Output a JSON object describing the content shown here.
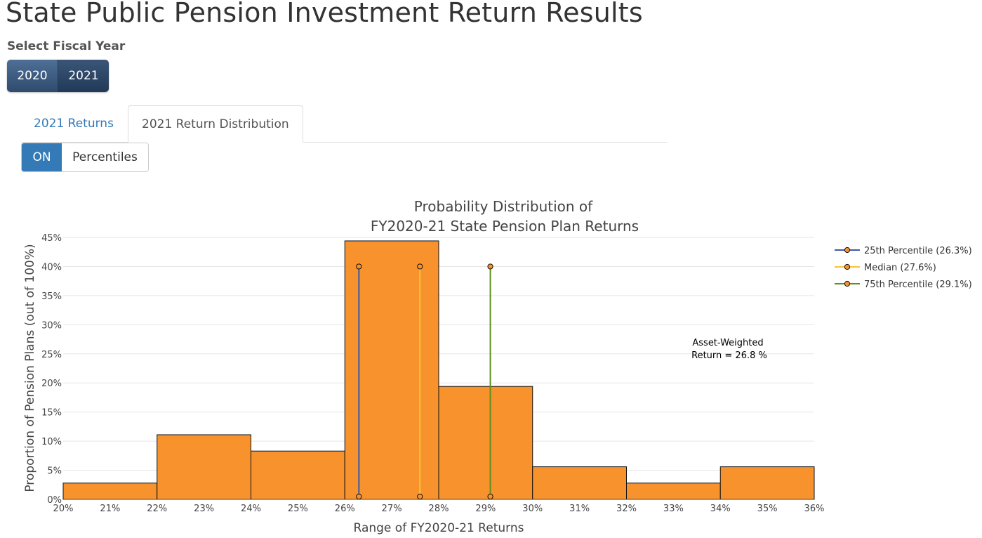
{
  "header": {
    "title": "State Public Pension Investment Return Results"
  },
  "fiscal_year": {
    "label": "Select Fiscal Year",
    "options": [
      "2020",
      "2021"
    ],
    "selected": "2021"
  },
  "tabs": [
    {
      "label": "2021 Returns"
    },
    {
      "label": "2021 Return Distribution"
    }
  ],
  "active_tab": "2021 Return Distribution",
  "percentile_toggle": {
    "state": "ON",
    "label": "Percentiles"
  },
  "colors": {
    "bar": "#f7922c",
    "p25": "#3b5ba7",
    "median": "#f9c13b",
    "p75": "#5f8f1e",
    "marker": "#f7922c"
  },
  "chart_data": {
    "type": "bar",
    "title_line1": "Probability Distribution of",
    "title_line2": "FY2020-21 State Pension Plan Returns",
    "xlabel": "Range of FY2020-21 Returns",
    "ylabel": "Proportion of Pension Plans (out of 100%)",
    "xlim": [
      20,
      36
    ],
    "ylim": [
      0,
      45
    ],
    "grid": true,
    "x_ticks": [
      "20%",
      "21%",
      "22%",
      "23%",
      "24%",
      "25%",
      "26%",
      "27%",
      "28%",
      "29%",
      "30%",
      "31%",
      "32%",
      "33%",
      "34%",
      "35%",
      "36%"
    ],
    "y_ticks": [
      "0%",
      "5%",
      "10%",
      "15%",
      "20%",
      "25%",
      "30%",
      "35%",
      "40%",
      "45%"
    ],
    "bins": [
      {
        "start": 20,
        "end": 22,
        "value": 2.8
      },
      {
        "start": 22,
        "end": 24,
        "value": 11.1
      },
      {
        "start": 24,
        "end": 26,
        "value": 8.3
      },
      {
        "start": 26,
        "end": 28,
        "value": 44.4
      },
      {
        "start": 28,
        "end": 30,
        "value": 19.4
      },
      {
        "start": 30,
        "end": 32,
        "value": 5.6
      },
      {
        "start": 32,
        "end": 34,
        "value": 2.8
      },
      {
        "start": 34,
        "end": 36,
        "value": 5.6
      }
    ],
    "percentiles": [
      {
        "name": "25th Percentile (26.3%)",
        "x": 26.3,
        "y_top": 40,
        "color_key": "p25"
      },
      {
        "name": "Median (27.6%)",
        "x": 27.6,
        "y_top": 40,
        "color_key": "median"
      },
      {
        "name": "75th Percentile (29.1%)",
        "x": 29.1,
        "y_top": 40,
        "color_key": "p75"
      }
    ],
    "annotation_line1": "Asset-Weighted",
    "annotation_line2": "Return = 26.8 %",
    "legend_position": "top-right"
  }
}
